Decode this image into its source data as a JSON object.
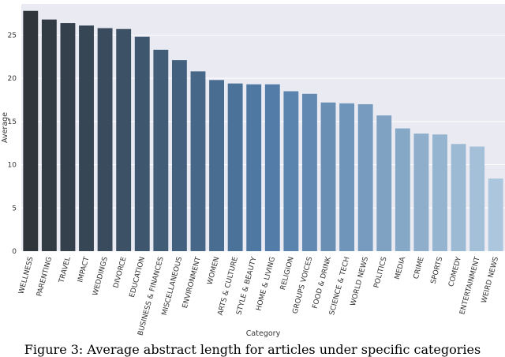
{
  "chart_data": {
    "type": "bar",
    "xlabel": "Category",
    "ylabel": "Average",
    "ylim": [
      0,
      28.6
    ],
    "yticks": [
      0,
      5,
      10,
      15,
      20,
      25
    ],
    "grid": true,
    "categories": [
      "WELLNESS",
      "PARENTING",
      "TRAVEL",
      "IMPACT",
      "WEDDINGS",
      "DIVORCE",
      "EDUCATION",
      "BUSINESS & FINANCES",
      "MISCELLANEOUS",
      "ENVIRONMENT",
      "WOMEN",
      "ARTS & CULTURE",
      "STYLE & BEAUTY",
      "HOME & LIVING",
      "RELIGION",
      "GROUPS VOICES",
      "FOOD & DRINK",
      "SCIENCE & TECH",
      "WORLD NEWS",
      "POLITICS",
      "MEDIA",
      "CRIME",
      "SPORTS",
      "COMEDY",
      "ENTERTAINMENT",
      "WEIRD NEWS"
    ],
    "values": [
      27.8,
      26.8,
      26.4,
      26.1,
      25.8,
      25.7,
      24.8,
      23.3,
      22.1,
      20.8,
      19.8,
      19.4,
      19.3,
      19.3,
      18.5,
      18.2,
      17.2,
      17.1,
      17.0,
      15.7,
      14.2,
      13.6,
      13.5,
      12.4,
      12.1,
      8.4
    ],
    "colors": {
      "start": "#2f353b",
      "mid": "#4f7aa6",
      "end": "#abc6dd",
      "plot_bg": "#eaeaf2",
      "grid": "#ffffff"
    }
  },
  "caption": "Figure 3: Average abstract length for articles under specific categories"
}
